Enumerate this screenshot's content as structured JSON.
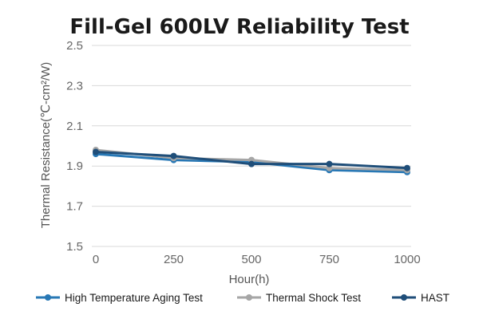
{
  "chart_data": {
    "type": "line",
    "title": "Fill-Gel 600LV Reliability Test",
    "xlabel": "Hour(h)",
    "ylabel": "Thermal Resistance(℃-cm²/W)",
    "x": [
      0,
      250,
      500,
      750,
      1000
    ],
    "x_tick_labels": [
      "0",
      "250",
      "500",
      "750",
      "1000"
    ],
    "ylim": [
      1.5,
      2.5
    ],
    "y_ticks": [
      1.5,
      1.7,
      1.9,
      2.1,
      2.3,
      2.5
    ],
    "y_tick_labels": [
      "1.5",
      "1.7",
      "1.9",
      "2.1",
      "2.3",
      "2.5"
    ],
    "grid": true,
    "legend_position": "bottom",
    "series": [
      {
        "name": "High Temperature Aging Test",
        "color": "#2878b5",
        "values": [
          1.96,
          1.93,
          1.92,
          1.88,
          1.87
        ]
      },
      {
        "name": "Thermal Shock Test",
        "color": "#a6a6a6",
        "values": [
          1.98,
          1.94,
          1.93,
          1.89,
          1.88
        ]
      },
      {
        "name": "HAST",
        "color": "#1f4e79",
        "values": [
          1.97,
          1.95,
          1.91,
          1.91,
          1.89
        ]
      }
    ]
  }
}
